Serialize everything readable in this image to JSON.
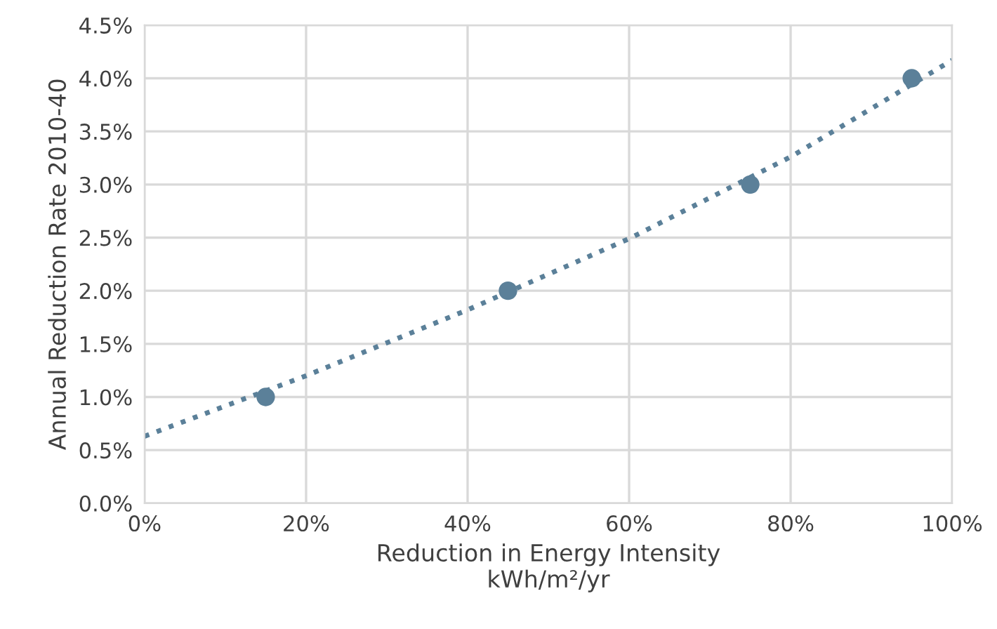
{
  "chart_data": {
    "type": "scatter",
    "xlabel": "Reduction in Energy Intensity\nkWh/m²/yr",
    "ylabel": "Annual Reduction Rate 2010-40",
    "series": [
      {
        "color": "#5b8099",
        "marker": "circle",
        "x": [
          15,
          45,
          75,
          95
        ],
        "values": [
          1.0,
          2.0,
          3.0,
          4.0
        ]
      },
      {
        "type": "line",
        "color": "#5b8099",
        "marker": "none",
        "line_style": "dotted",
        "x": [
          0,
          20,
          40,
          60,
          80,
          100
        ],
        "values": [
          0.63,
          1.2,
          1.82,
          2.49,
          3.26,
          4.17
        ]
      }
    ],
    "xlim": [
      0,
      100
    ],
    "ylim": [
      0,
      4.5
    ],
    "xticks": [
      {
        "value": 0,
        "label": "0%"
      },
      {
        "value": 20,
        "label": "20%"
      },
      {
        "value": 40,
        "label": "40%"
      },
      {
        "value": 60,
        "label": "60%"
      },
      {
        "value": 80,
        "label": "80%"
      },
      {
        "value": 100,
        "label": "100%"
      }
    ],
    "yticks": [
      {
        "value": 0,
        "label": "0.0%"
      },
      {
        "value": 0.5,
        "label": "0.5%"
      },
      {
        "value": 1.0,
        "label": "1.0%"
      },
      {
        "value": 1.5,
        "label": "1.5%"
      },
      {
        "value": 2.0,
        "label": "2.0%"
      },
      {
        "value": 2.5,
        "label": "2.5%"
      },
      {
        "value": 3.0,
        "label": "3.0%"
      },
      {
        "value": 3.5,
        "label": "3.5%"
      },
      {
        "value": 4.0,
        "label": "4.0%"
      },
      {
        "value": 4.5,
        "label": "4.5%"
      }
    ],
    "grid": true
  }
}
